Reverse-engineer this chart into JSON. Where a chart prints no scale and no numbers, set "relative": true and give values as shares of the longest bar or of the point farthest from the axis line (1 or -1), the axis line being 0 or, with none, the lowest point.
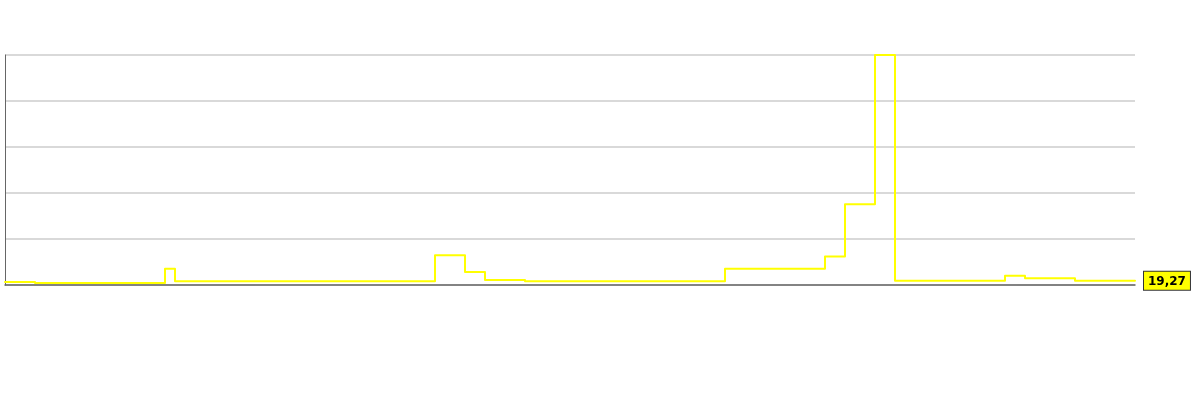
{
  "chart_data": {
    "type": "step",
    "relative": true,
    "grid": "y",
    "marker": "none",
    "line_style": "solid",
    "annotations": [
      "19,27"
    ],
    "categories": [
      null,
      null,
      null,
      null,
      null,
      null,
      null,
      null,
      null,
      null,
      null,
      null,
      null,
      null,
      null,
      null,
      null,
      null,
      null,
      null,
      null,
      null,
      null,
      null,
      null,
      null,
      null,
      null,
      null,
      null,
      null,
      null,
      null,
      null,
      null,
      null,
      null,
      null,
      null,
      null,
      null,
      null,
      null,
      null,
      null,
      null,
      null,
      null,
      null,
      null,
      null,
      null,
      null,
      null,
      null,
      null,
      null,
      null,
      null,
      null,
      null,
      null,
      null,
      null,
      null,
      null,
      null,
      null,
      null,
      null,
      null,
      null,
      null,
      null,
      null,
      null,
      null,
      null,
      null,
      null,
      null,
      null,
      null,
      null,
      null,
      null,
      null,
      null,
      null,
      null,
      null,
      null,
      null,
      null,
      null,
      null,
      null,
      null,
      null,
      null,
      null,
      null,
      null,
      null,
      null,
      null,
      null,
      null,
      null,
      null,
      null,
      null,
      null,
      null
    ],
    "series": [
      {
        "color": "#ffff00",
        "values": [
          0.013,
          0.013,
          0.013,
          0.013,
          0.009,
          0.009,
          0.009,
          0.009,
          0.009,
          0.009,
          0.009,
          0.009,
          0.009,
          0.009,
          0.009,
          0.009,
          0.009,
          0.071,
          0.016,
          0.016,
          0.016,
          0.016,
          0.016,
          0.016,
          0.016,
          0.016,
          0.016,
          0.016,
          0.016,
          0.016,
          0.016,
          0.016,
          0.016,
          0.016,
          0.016,
          0.016,
          0.016,
          0.016,
          0.016,
          0.016,
          0.016,
          0.016,
          0.016,
          0.016,
          0.129,
          0.129,
          0.129,
          0.056,
          0.056,
          0.022,
          0.022,
          0.022,
          0.022,
          0.016,
          0.016,
          0.016,
          0.016,
          0.016,
          0.016,
          0.016,
          0.016,
          0.016,
          0.016,
          0.016,
          0.016,
          0.016,
          0.016,
          0.016,
          0.016,
          0.016,
          0.016,
          0.016,
          0.016,
          0.071,
          0.071,
          0.071,
          0.071,
          0.071,
          0.071,
          0.071,
          0.071,
          0.071,
          0.071,
          0.124,
          0.124,
          0.351,
          0.351,
          0.351,
          1,
          1,
          0.018,
          0.018,
          0.018,
          0.018,
          0.018,
          0.018,
          0.018,
          0.018,
          0.018,
          0.018,
          0.018,
          0.04,
          0.04,
          0.029,
          0.029,
          0.029,
          0.029,
          0.029,
          0.018,
          0.018,
          0.018,
          0.018,
          0.018,
          0.018
        ]
      }
    ]
  }
}
